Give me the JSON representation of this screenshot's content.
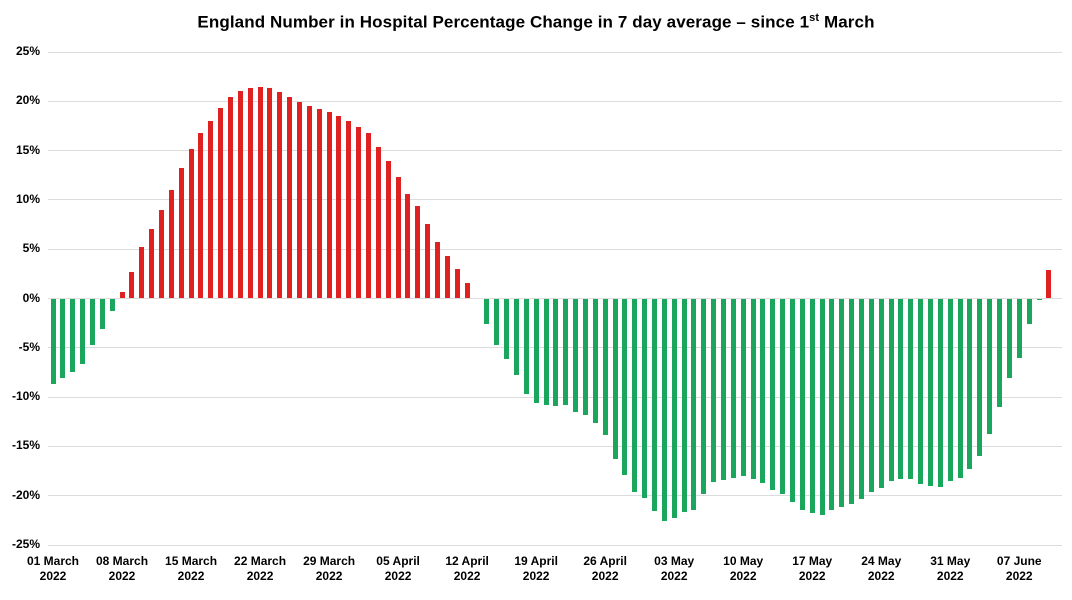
{
  "chart_data": {
    "type": "bar",
    "title": "England Number in Hospital Percentage Change in 7 day average – since 1st March",
    "title_parts": {
      "before_sup": "England Number in Hospital Percentage Change in 7 day average – since 1",
      "sup": "st",
      "after_sup": " March"
    },
    "xlabel": "",
    "ylabel": "",
    "ylim": [
      -25,
      25
    ],
    "ytick_step": 5,
    "ytick_labels": [
      "25%",
      "20%",
      "15%",
      "10%",
      "5%",
      "0%",
      "-5%",
      "-10%",
      "-15%",
      "-20%",
      "-25%"
    ],
    "xtick_every_days": 7,
    "xtick_labels": [
      {
        "line1": "01 March",
        "line2": "2022"
      },
      {
        "line1": "08 March",
        "line2": "2022"
      },
      {
        "line1": "15 March",
        "line2": "2022"
      },
      {
        "line1": "22 March",
        "line2": "2022"
      },
      {
        "line1": "29 March",
        "line2": "2022"
      },
      {
        "line1": "05 April",
        "line2": "2022"
      },
      {
        "line1": "12 April",
        "line2": "2022"
      },
      {
        "line1": "19 April",
        "line2": "2022"
      },
      {
        "line1": "26 April",
        "line2": "2022"
      },
      {
        "line1": "03 May",
        "line2": "2022"
      },
      {
        "line1": "10 May",
        "line2": "2022"
      },
      {
        "line1": "17 May",
        "line2": "2022"
      },
      {
        "line1": "24 May",
        "line2": "2022"
      },
      {
        "line1": "31 May",
        "line2": "2022"
      },
      {
        "line1": "07 June",
        "line2": "2022"
      }
    ],
    "grid": true,
    "legend": "none",
    "positive_color": "#e02121",
    "negative_color": "#1aa65c",
    "gridline_color": "#dcdcdc",
    "start_date": "2022-03-01",
    "end_date": "2022-06-10",
    "dates": [
      "2022-03-01",
      "2022-03-02",
      "2022-03-03",
      "2022-03-04",
      "2022-03-05",
      "2022-03-06",
      "2022-03-07",
      "2022-03-08",
      "2022-03-09",
      "2022-03-10",
      "2022-03-11",
      "2022-03-12",
      "2022-03-13",
      "2022-03-14",
      "2022-03-15",
      "2022-03-16",
      "2022-03-17",
      "2022-03-18",
      "2022-03-19",
      "2022-03-20",
      "2022-03-21",
      "2022-03-22",
      "2022-03-23",
      "2022-03-24",
      "2022-03-25",
      "2022-03-26",
      "2022-03-27",
      "2022-03-28",
      "2022-03-29",
      "2022-03-30",
      "2022-03-31",
      "2022-04-01",
      "2022-04-02",
      "2022-04-03",
      "2022-04-04",
      "2022-04-05",
      "2022-04-06",
      "2022-04-07",
      "2022-04-08",
      "2022-04-09",
      "2022-04-10",
      "2022-04-11",
      "2022-04-12",
      "2022-04-13",
      "2022-04-14",
      "2022-04-15",
      "2022-04-16",
      "2022-04-17",
      "2022-04-18",
      "2022-04-19",
      "2022-04-20",
      "2022-04-21",
      "2022-04-22",
      "2022-04-23",
      "2022-04-24",
      "2022-04-25",
      "2022-04-26",
      "2022-04-27",
      "2022-04-28",
      "2022-04-29",
      "2022-04-30",
      "2022-05-01",
      "2022-05-02",
      "2022-05-03",
      "2022-05-04",
      "2022-05-05",
      "2022-05-06",
      "2022-05-07",
      "2022-05-08",
      "2022-05-09",
      "2022-05-10",
      "2022-05-11",
      "2022-05-12",
      "2022-05-13",
      "2022-05-14",
      "2022-05-15",
      "2022-05-16",
      "2022-05-17",
      "2022-05-18",
      "2022-05-19",
      "2022-05-20",
      "2022-05-21",
      "2022-05-22",
      "2022-05-23",
      "2022-05-24",
      "2022-05-25",
      "2022-05-26",
      "2022-05-27",
      "2022-05-28",
      "2022-05-29",
      "2022-05-30",
      "2022-05-31",
      "2022-06-01",
      "2022-06-02",
      "2022-06-03",
      "2022-06-04",
      "2022-06-05",
      "2022-06-06",
      "2022-06-07",
      "2022-06-08",
      "2022-06-09",
      "2022-06-10"
    ],
    "values": [
      -8.7,
      -8.1,
      -7.5,
      -6.6,
      -4.7,
      -3.1,
      -1.3,
      0.7,
      2.7,
      5.2,
      7.0,
      9.0,
      11.0,
      13.2,
      15.2,
      16.8,
      18.0,
      19.3,
      20.4,
      21.0,
      21.3,
      21.4,
      21.3,
      20.9,
      20.4,
      19.9,
      19.5,
      19.2,
      18.9,
      18.5,
      18.0,
      17.4,
      16.8,
      15.4,
      13.9,
      12.3,
      10.6,
      9.4,
      7.6,
      5.7,
      4.3,
      3.0,
      1.6,
      0.0,
      -2.6,
      -4.7,
      -6.1,
      -7.8,
      -9.7,
      -10.6,
      -10.8,
      -10.9,
      -10.8,
      -11.5,
      -11.8,
      -12.6,
      -13.8,
      -16.3,
      -17.9,
      -19.6,
      -20.2,
      -21.6,
      -22.6,
      -22.3,
      -21.7,
      -21.4,
      -19.8,
      -18.6,
      -18.4,
      -18.2,
      -18.0,
      -18.3,
      -18.7,
      -19.4,
      -19.8,
      -20.6,
      -21.4,
      -21.8,
      -22.0,
      -21.4,
      -21.1,
      -20.8,
      -20.3,
      -19.6,
      -19.2,
      -18.5,
      -18.3,
      -18.3,
      -18.8,
      -19.0,
      -19.1,
      -18.5,
      -18.2,
      -17.3,
      -16.0,
      -13.7,
      -11.0,
      -8.1,
      -6.0,
      -2.6,
      -0.2,
      2.9
    ]
  }
}
